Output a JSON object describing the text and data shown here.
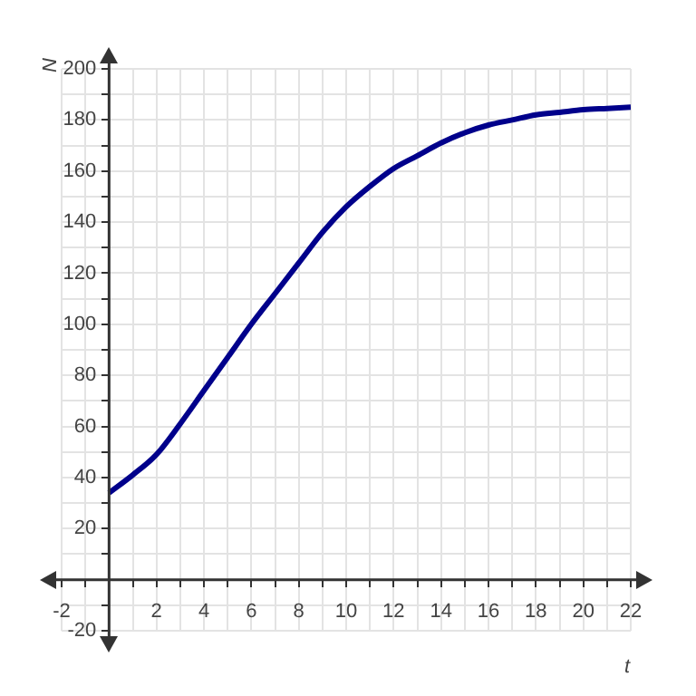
{
  "chart_data": {
    "type": "line",
    "xlabel": "t",
    "ylabel": "N",
    "x": [
      0,
      1,
      2,
      3,
      4,
      5,
      6,
      7,
      8,
      9,
      10,
      11,
      12,
      13,
      14,
      15,
      16,
      17,
      18,
      19,
      20,
      21,
      22
    ],
    "series": [
      {
        "color": "#00008b",
        "values": [
          34,
          41,
          49,
          61,
          74,
          87,
          100,
          112,
          124,
          136,
          146,
          154,
          161,
          166,
          171,
          175,
          178,
          180,
          182,
          183,
          184,
          184.5,
          185
        ]
      }
    ],
    "xlim": [
      -2,
      22
    ],
    "xticks": [
      -2,
      {
        "value": -1,
        "label": null
      },
      {
        "value": 0,
        "label": null
      },
      {
        "value": 1,
        "label": null
      },
      2,
      {
        "value": 3,
        "label": null
      },
      4,
      {
        "value": 5,
        "label": null
      },
      6,
      {
        "value": 7,
        "label": null
      },
      8,
      {
        "value": 9,
        "label": null
      },
      10,
      {
        "value": 11,
        "label": null
      },
      12,
      {
        "value": 13,
        "label": null
      },
      14,
      {
        "value": 15,
        "label": null
      },
      16,
      {
        "value": 17,
        "label": null
      },
      18,
      {
        "value": 19,
        "label": null
      },
      20,
      {
        "value": 21,
        "label": null
      },
      22
    ],
    "ylim": [
      -20,
      200
    ],
    "yticks": [
      -20,
      {
        "value": -10,
        "label": null
      },
      {
        "value": 0,
        "label": null
      },
      {
        "value": 10,
        "label": null
      },
      20,
      {
        "value": 30,
        "label": null
      },
      40,
      {
        "value": 50,
        "label": null
      },
      60,
      {
        "value": 70,
        "label": null
      },
      80,
      {
        "value": 90,
        "label": null
      },
      100,
      {
        "value": 110,
        "label": null
      },
      120,
      {
        "value": 130,
        "label": null
      },
      140,
      {
        "value": 150,
        "label": null
      },
      160,
      {
        "value": 170,
        "label": null
      },
      180,
      {
        "value": 190,
        "label": null
      },
      200
    ],
    "grid": true,
    "marker": "none",
    "line_style": "solid",
    "legend": false
  }
}
